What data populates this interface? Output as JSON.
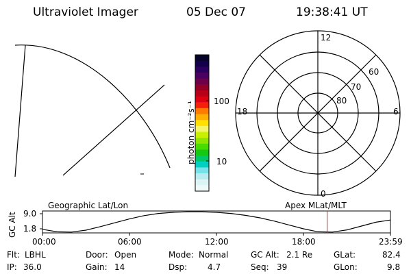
{
  "header": {
    "instrument": "Ultraviolet Imager",
    "date": "05 Dec 07",
    "time": "19:38:41 UT"
  },
  "colorbar": {
    "label": "photon cm⁻²s⁻¹",
    "tick_high": "100",
    "tick_low": "10",
    "colors": [
      "#050428",
      "#14004a",
      "#2a0060",
      "#4a0060",
      "#6e004a",
      "#92002a",
      "#b80016",
      "#dc0010",
      "#f4200c",
      "#ff7a00",
      "#ffb000",
      "#ffe000",
      "#f4f46a",
      "#c8f000",
      "#8ee600",
      "#48dc00",
      "#14c814",
      "#00c868",
      "#00d0c0",
      "#78e0e8",
      "#b8ecf0",
      "#dcf4f6",
      "#eef9fa"
    ]
  },
  "polar": {
    "label_12": "12",
    "label_6": "6",
    "label_18": "18",
    "label_0": "0",
    "lat_60": "60",
    "lat_70": "70",
    "lat_80": "80"
  },
  "strip": {
    "left_label": "Geographic Lat/Lon",
    "right_label": "Apex MLat/MLT",
    "axis_label": "GC Alt",
    "y_max": "9.0",
    "y_min": "1.8",
    "x_ticks": [
      "00:00",
      "06:00",
      "12:00",
      "18:00",
      "23:59"
    ]
  },
  "orbit_chart": {
    "x_hours": [
      0,
      1,
      2,
      3,
      4,
      5,
      6,
      7,
      8,
      9,
      10,
      11,
      12,
      13,
      14,
      15,
      16,
      17,
      18,
      19,
      20,
      21,
      22,
      23,
      24
    ],
    "y_alt": [
      2.8,
      1.9,
      1.8,
      2.5,
      3.8,
      5.2,
      6.6,
      7.8,
      8.6,
      9.0,
      9.2,
      9.2,
      9.0,
      8.6,
      7.9,
      7.0,
      5.8,
      4.4,
      3.0,
      1.9,
      1.8,
      2.6,
      4.0,
      5.4,
      6.2
    ],
    "current_hour": 19.64
  },
  "status": {
    "flt_label": "Flt:",
    "flt_value": "LBHL",
    "ip_label": "IP:",
    "ip_value": "36.0",
    "door_label": "Door:",
    "door_value": "Open",
    "gain_label": "Gain:",
    "gain_value": "14",
    "mode_label": "Mode:",
    "mode_value": "Normal",
    "dsp_label": "Dsp:",
    "dsp_value": "4.7",
    "gcalt_label": "GC Alt:",
    "gcalt_value": "2.1 Re",
    "seq_label": "Seq:",
    "seq_value": "39",
    "glat_label": "GLat:",
    "glat_value": "82.4",
    "glon_label": "GLon:",
    "glon_value": "9.8"
  }
}
